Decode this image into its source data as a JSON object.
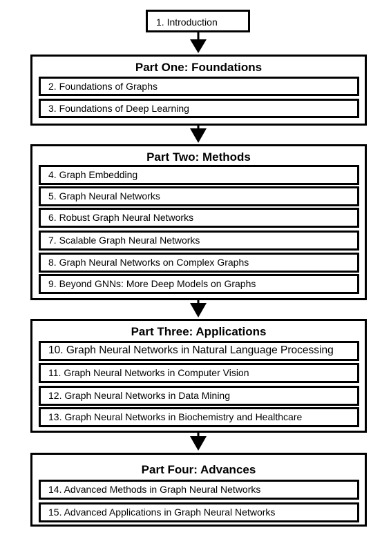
{
  "intro": "1. Introduction",
  "parts": [
    {
      "title": "Part One: Foundations",
      "chapters": [
        "2. Foundations of Graphs",
        "3. Foundations of Deep Learning"
      ]
    },
    {
      "title": "Part Two: Methods",
      "chapters": [
        "4. Graph Embedding",
        "5. Graph Neural Networks",
        "6. Robust Graph Neural Networks",
        "7. Scalable Graph Neural Networks",
        "8. Graph Neural Networks on Complex Graphs",
        "9. Beyond GNNs: More Deep Models on Graphs"
      ]
    },
    {
      "title": "Part Three: Applications",
      "chapters": [
        "10. Graph Neural Networks in Natural Language Processing",
        "11. Graph Neural Networks in Computer Vision",
        "12. Graph Neural Networks in Data Mining",
        "13. Graph Neural Networks in Biochemistry and Healthcare"
      ]
    },
    {
      "title": "Part Four: Advances",
      "chapters": [
        "14. Advanced Methods in Graph Neural Networks",
        "15. Advanced Applications in Graph Neural Networks"
      ]
    }
  ]
}
